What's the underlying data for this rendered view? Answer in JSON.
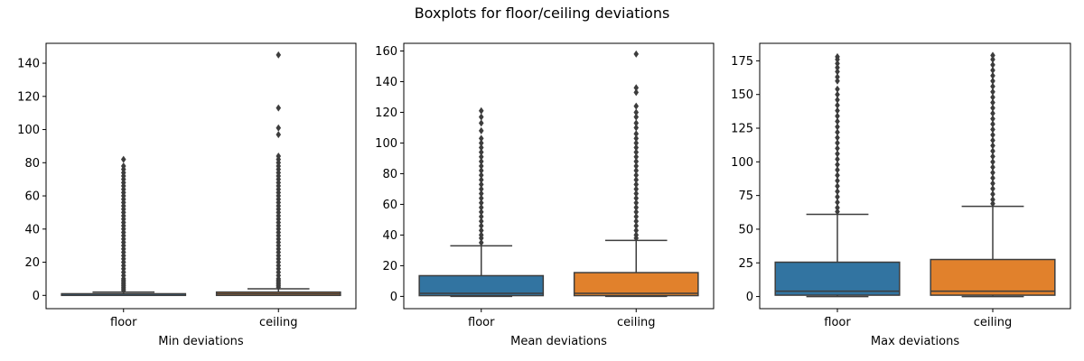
{
  "title": "Boxplots for floor/ceiling deviations",
  "colors": {
    "floor": "#3274a1",
    "ceiling": "#e1812c",
    "line": "#3d3d3d"
  },
  "chart_data": [
    {
      "type": "box",
      "xlabel": "Min deviations",
      "ylabel": "",
      "ylim": [
        -8,
        152
      ],
      "yticks": [
        0,
        20,
        40,
        60,
        80,
        100,
        120,
        140
      ],
      "categories": [
        "floor",
        "ceiling"
      ],
      "boxes": [
        {
          "name": "floor",
          "whisker_low": 0,
          "q1": 0,
          "median": 0,
          "q3": 1,
          "whisker_high": 2,
          "outliers": [
            3,
            4,
            5,
            6,
            7,
            8,
            9,
            10,
            12,
            14,
            16,
            18,
            20,
            22,
            24,
            26,
            28,
            30,
            32,
            34,
            36,
            38,
            40,
            42,
            44,
            46,
            48,
            50,
            52,
            54,
            56,
            58,
            60,
            62,
            64,
            66,
            68,
            70,
            72,
            74,
            76,
            78,
            82
          ]
        },
        {
          "name": "ceiling",
          "whisker_low": 0,
          "q1": 0,
          "median": 1,
          "q3": 2,
          "whisker_high": 4,
          "outliers": [
            5,
            6,
            7,
            8,
            9,
            10,
            12,
            14,
            16,
            18,
            20,
            22,
            24,
            26,
            28,
            30,
            32,
            34,
            36,
            38,
            40,
            42,
            44,
            46,
            48,
            50,
            52,
            54,
            56,
            58,
            60,
            62,
            64,
            66,
            68,
            70,
            72,
            74,
            76,
            78,
            80,
            82,
            84,
            97,
            101,
            113,
            145
          ]
        }
      ]
    },
    {
      "type": "box",
      "xlabel": "Mean deviations",
      "ylabel": "",
      "ylim": [
        -8,
        165
      ],
      "yticks": [
        0,
        20,
        40,
        60,
        80,
        100,
        120,
        140,
        160
      ],
      "categories": [
        "floor",
        "ceiling"
      ],
      "boxes": [
        {
          "name": "floor",
          "whisker_low": 0,
          "q1": 0.5,
          "median": 2,
          "q3": 13.5,
          "whisker_high": 33,
          "outliers": [
            35,
            38,
            40,
            43,
            46,
            49,
            52,
            55,
            58,
            61,
            64,
            67,
            70,
            73,
            76,
            79,
            82,
            85,
            88,
            91,
            94,
            97,
            100,
            103,
            108,
            113,
            117,
            121
          ]
        },
        {
          "name": "ceiling",
          "whisker_low": 0,
          "q1": 0.5,
          "median": 2,
          "q3": 15.5,
          "whisker_high": 36.5,
          "outliers": [
            38,
            40,
            43,
            46,
            49,
            52,
            55,
            58,
            61,
            64,
            67,
            70,
            73,
            76,
            79,
            82,
            85,
            88,
            91,
            94,
            97,
            100,
            103,
            106,
            110,
            113,
            117,
            120,
            124,
            133,
            136,
            158
          ]
        }
      ]
    },
    {
      "type": "box",
      "xlabel": "Max deviations",
      "ylabel": "",
      "ylim": [
        -9,
        188
      ],
      "yticks": [
        0,
        25,
        50,
        75,
        100,
        125,
        150,
        175
      ],
      "categories": [
        "floor",
        "ceiling"
      ],
      "boxes": [
        {
          "name": "floor",
          "whisker_low": 0,
          "q1": 1,
          "median": 4,
          "q3": 25.5,
          "whisker_high": 61,
          "outliers": [
            63,
            66,
            70,
            74,
            78,
            82,
            86,
            90,
            94,
            98,
            102,
            106,
            110,
            114,
            118,
            122,
            126,
            130,
            134,
            138,
            142,
            146,
            150,
            154,
            160,
            163,
            167,
            170,
            173,
            176,
            178
          ]
        },
        {
          "name": "ceiling",
          "whisker_low": 0,
          "q1": 1,
          "median": 4,
          "q3": 27.5,
          "whisker_high": 67,
          "outliers": [
            69,
            72,
            76,
            80,
            84,
            88,
            92,
            96,
            100,
            104,
            108,
            112,
            116,
            120,
            124,
            128,
            132,
            136,
            140,
            144,
            148,
            152,
            156,
            160,
            164,
            168,
            172,
            176,
            179
          ]
        }
      ]
    }
  ]
}
